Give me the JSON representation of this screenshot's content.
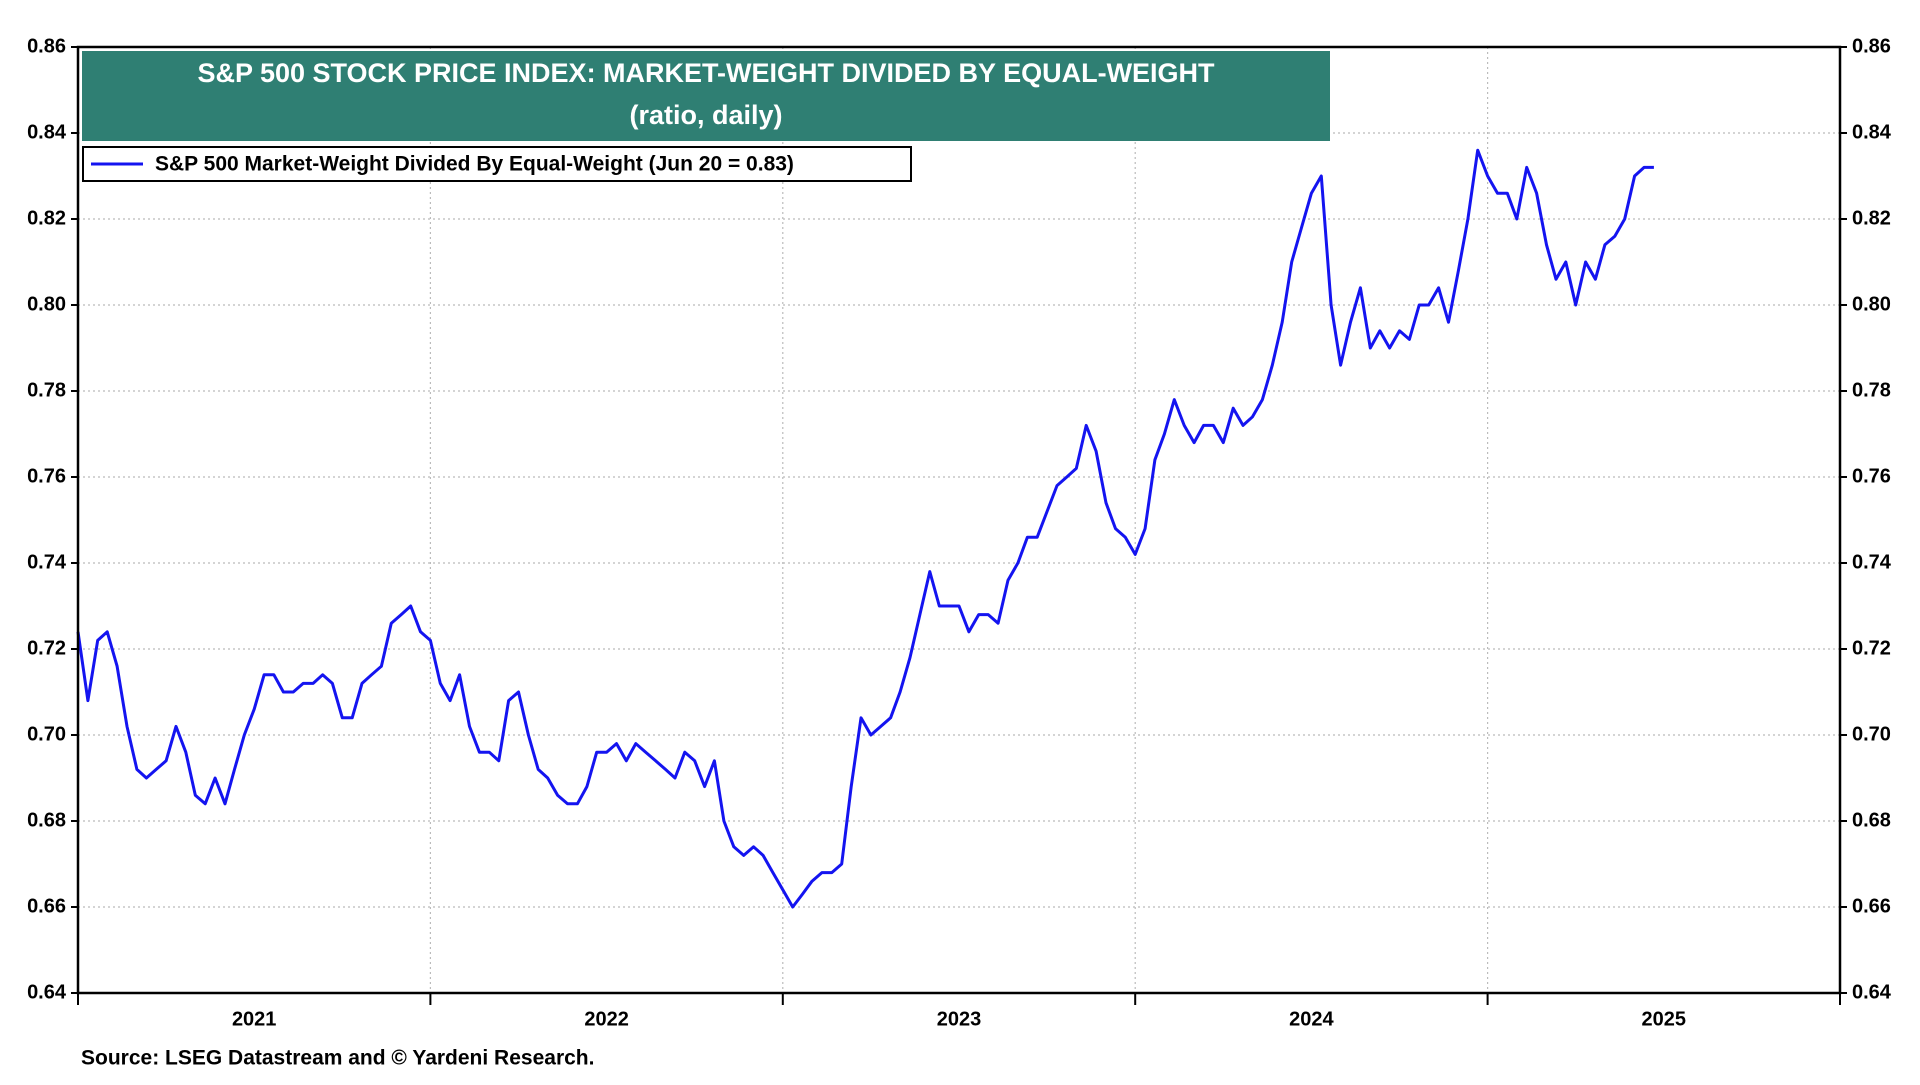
{
  "chart_data": {
    "type": "line",
    "title": "S&P 500 STOCK PRICE INDEX: MARKET-WEIGHT DIVIDED BY EQUAL-WEIGHT",
    "subtitle": "(ratio, daily)",
    "source": "Source: LSEG Datastream and © Yardeni Research.",
    "xlim": [
      2021,
      2026
    ],
    "xticks": [
      2021,
      2022,
      2023,
      2024,
      2025,
      2026
    ],
    "ylim": [
      0.64,
      0.86
    ],
    "yticks": [
      {
        "value": 0.64,
        "label": "0.64"
      },
      {
        "value": 0.66,
        "label": "0.66"
      },
      {
        "value": 0.68,
        "label": "0.68"
      },
      {
        "value": 0.7,
        "label": "0.70"
      },
      {
        "value": 0.72,
        "label": "0.72"
      },
      {
        "value": 0.74,
        "label": "0.74"
      },
      {
        "value": 0.76,
        "label": "0.76"
      },
      {
        "value": 0.78,
        "label": "0.78"
      },
      {
        "value": 0.8,
        "label": "0.80"
      },
      {
        "value": 0.82,
        "label": "0.82"
      },
      {
        "value": 0.84,
        "label": "0.84"
      },
      {
        "value": 0.86,
        "label": "0.86"
      }
    ],
    "grid": true,
    "legend": "top-left",
    "x": [
      2021,
      2021.028,
      2021.056,
      2021.083,
      2021.111,
      2021.139,
      2021.167,
      2021.194,
      2021.222,
      2021.25,
      2021.278,
      2021.306,
      2021.333,
      2021.361,
      2021.389,
      2021.417,
      2021.444,
      2021.472,
      2021.5,
      2021.528,
      2021.556,
      2021.583,
      2021.611,
      2021.639,
      2021.667,
      2021.694,
      2021.722,
      2021.75,
      2021.778,
      2021.806,
      2021.833,
      2021.861,
      2021.889,
      2021.917,
      2021.944,
      2021.972,
      2022,
      2022.028,
      2022.056,
      2022.083,
      2022.111,
      2022.139,
      2022.167,
      2022.194,
      2022.222,
      2022.25,
      2022.278,
      2022.306,
      2022.333,
      2022.361,
      2022.389,
      2022.417,
      2022.444,
      2022.472,
      2022.5,
      2022.528,
      2022.556,
      2022.583,
      2022.611,
      2022.639,
      2022.667,
      2022.694,
      2022.722,
      2022.75,
      2022.778,
      2022.806,
      2022.833,
      2022.861,
      2022.889,
      2022.917,
      2022.944,
      2022.972,
      2023,
      2023.028,
      2023.056,
      2023.083,
      2023.111,
      2023.139,
      2023.167,
      2023.194,
      2023.222,
      2023.25,
      2023.278,
      2023.306,
      2023.333,
      2023.361,
      2023.389,
      2023.417,
      2023.444,
      2023.472,
      2023.5,
      2023.528,
      2023.556,
      2023.583,
      2023.611,
      2023.639,
      2023.667,
      2023.694,
      2023.722,
      2023.75,
      2023.778,
      2023.806,
      2023.833,
      2023.861,
      2023.889,
      2023.917,
      2023.944,
      2023.972,
      2024,
      2024.028,
      2024.056,
      2024.083,
      2024.111,
      2024.139,
      2024.167,
      2024.194,
      2024.222,
      2024.25,
      2024.278,
      2024.306,
      2024.333,
      2024.361,
      2024.389,
      2024.417,
      2024.444,
      2024.472,
      2024.5,
      2024.528,
      2024.556,
      2024.583,
      2024.611,
      2024.639,
      2024.667,
      2024.694,
      2024.722,
      2024.75,
      2024.778,
      2024.806,
      2024.833,
      2024.861,
      2024.889,
      2024.917,
      2024.944,
      2024.972,
      2025,
      2025.028,
      2025.056,
      2025.083,
      2025.111,
      2025.139,
      2025.167,
      2025.194,
      2025.222,
      2025.25,
      2025.278,
      2025.306,
      2025.333,
      2025.361,
      2025.389,
      2025.417,
      2025.444,
      2025.472
    ],
    "series": [
      {
        "name": "S&P 500 Market-Weight Divided By Equal-Weight (Jun 20 = 0.83)",
        "color": "#1414f0",
        "values": [
          0.724,
          0.708,
          0.722,
          0.724,
          0.716,
          0.702,
          0.692,
          0.69,
          0.692,
          0.694,
          0.702,
          0.696,
          0.686,
          0.684,
          0.69,
          0.684,
          0.692,
          0.7,
          0.706,
          0.714,
          0.714,
          0.71,
          0.71,
          0.712,
          0.712,
          0.714,
          0.712,
          0.704,
          0.704,
          0.712,
          0.714,
          0.716,
          0.726,
          0.728,
          0.73,
          0.724,
          0.722,
          0.712,
          0.708,
          0.714,
          0.702,
          0.696,
          0.696,
          0.694,
          0.708,
          0.71,
          0.7,
          0.692,
          0.69,
          0.686,
          0.684,
          0.684,
          0.688,
          0.696,
          0.696,
          0.698,
          0.694,
          0.698,
          0.696,
          0.694,
          0.692,
          0.69,
          0.696,
          0.694,
          0.688,
          0.694,
          0.68,
          0.674,
          0.672,
          0.674,
          0.672,
          0.668,
          0.664,
          0.66,
          0.663,
          0.666,
          0.668,
          0.668,
          0.67,
          0.688,
          0.704,
          0.7,
          0.702,
          0.704,
          0.71,
          0.718,
          0.728,
          0.738,
          0.73,
          0.73,
          0.73,
          0.724,
          0.728,
          0.728,
          0.726,
          0.736,
          0.74,
          0.746,
          0.746,
          0.752,
          0.758,
          0.76,
          0.762,
          0.772,
          0.766,
          0.754,
          0.748,
          0.746,
          0.742,
          0.748,
          0.764,
          0.77,
          0.778,
          0.772,
          0.768,
          0.772,
          0.772,
          0.768,
          0.776,
          0.772,
          0.774,
          0.778,
          0.786,
          0.796,
          0.81,
          0.818,
          0.826,
          0.83,
          0.8,
          0.786,
          0.796,
          0.804,
          0.79,
          0.794,
          0.79,
          0.794,
          0.792,
          0.8,
          0.8,
          0.804,
          0.796,
          0.808,
          0.82,
          0.836,
          0.83,
          0.826,
          0.826,
          0.82,
          0.832,
          0.826,
          0.814,
          0.806,
          0.81,
          0.8,
          0.81,
          0.806,
          0.814,
          0.816,
          0.82,
          0.83,
          0.832,
          0.832
        ]
      }
    ]
  }
}
